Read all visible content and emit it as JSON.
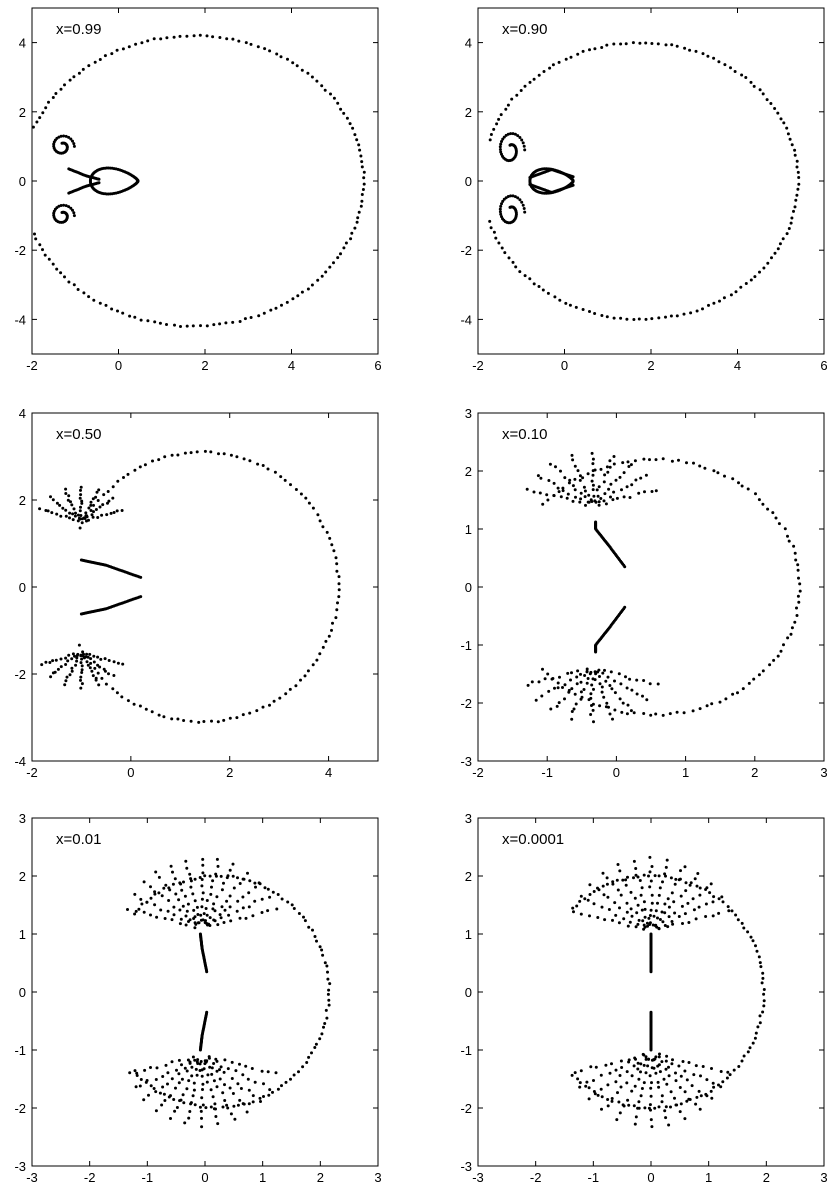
{
  "chart_data": [
    {
      "type": "scatter",
      "label": "x=0.99",
      "xlim": [
        -2,
        6
      ],
      "ylim": [
        -5,
        5
      ],
      "xticks": [
        -2,
        0,
        2,
        4,
        6
      ],
      "yticks": [
        -4,
        -2,
        0,
        2,
        4
      ],
      "curves": [
        {
          "kind": "cardioid",
          "cx": 1.72,
          "rx": 3.95,
          "ry": 4.2,
          "gap": 0.26,
          "n": 150
        },
        {
          "kind": "spiral",
          "cx": -1.3,
          "cy": 1.0,
          "rx": 0.28,
          "ry": 0.35,
          "n": 34
        },
        {
          "kind": "spiral",
          "cx": -1.3,
          "cy": -1.0,
          "rx": 0.28,
          "ry": 0.35,
          "n": 34
        },
        {
          "kind": "loop",
          "cx": -0.1,
          "cy": 0.0,
          "rx": 0.55,
          "ry": 0.34,
          "n": 80
        },
        {
          "kind": "line",
          "points": [
            [
              -1.15,
              0.35
            ],
            [
              -0.75,
              0.15
            ],
            [
              -0.45,
              0.05
            ]
          ],
          "n": 25
        },
        {
          "kind": "line",
          "points": [
            [
              -1.15,
              -0.35
            ],
            [
              -0.75,
              -0.15
            ],
            [
              -0.45,
              -0.05
            ]
          ],
          "n": 25
        }
      ]
    },
    {
      "type": "scatter",
      "label": "x=0.90",
      "xlim": [
        -2,
        6
      ],
      "ylim": [
        -5,
        5
      ],
      "xticks": [
        -2,
        0,
        2,
        4,
        6
      ],
      "yticks": [
        -4,
        -2,
        0,
        2,
        4
      ],
      "curves": [
        {
          "kind": "cardioid",
          "cx": 1.75,
          "rx": 3.65,
          "ry": 4.0,
          "gap": 0.3,
          "n": 140
        },
        {
          "kind": "spiral",
          "cx": -1.25,
          "cy": 0.9,
          "rx": 0.33,
          "ry": 0.55,
          "n": 42
        },
        {
          "kind": "spiral",
          "cx": -1.25,
          "cy": -0.9,
          "rx": 0.33,
          "ry": 0.55,
          "n": 42
        },
        {
          "kind": "loop",
          "cx": -0.3,
          "cy": 0.0,
          "rx": 0.5,
          "ry": 0.32,
          "n": 80
        },
        {
          "kind": "line",
          "points": [
            [
              0.2,
              0.12
            ],
            [
              -0.3,
              0.33
            ],
            [
              -0.8,
              0.1
            ]
          ],
          "n": 30
        },
        {
          "kind": "line",
          "points": [
            [
              0.2,
              -0.12
            ],
            [
              -0.3,
              -0.33
            ],
            [
              -0.8,
              -0.1
            ]
          ],
          "n": 30
        }
      ]
    },
    {
      "type": "scatter",
      "label": "x=0.50",
      "xlim": [
        -2,
        5
      ],
      "ylim": [
        -4,
        4
      ],
      "xticks": [
        -2,
        0,
        2,
        4
      ],
      "yticks": [
        -4,
        -2,
        0,
        2,
        4
      ],
      "curves": [
        {
          "kind": "cardioid",
          "cx": 1.45,
          "rx": 2.75,
          "ry": 3.1,
          "gap": 0.45,
          "n": 110
        },
        {
          "kind": "fan",
          "cx": -1.0,
          "cy": 1.5,
          "spokes": 7,
          "len": 0.8,
          "n": 70
        },
        {
          "kind": "fan",
          "cx": -1.0,
          "cy": -1.5,
          "spokes": 7,
          "len": 0.8,
          "n": 70
        },
        {
          "kind": "line",
          "points": [
            [
              0.2,
              0.22
            ],
            [
              -0.5,
              0.5
            ],
            [
              -1.0,
              0.62
            ]
          ],
          "n": 45
        },
        {
          "kind": "line",
          "points": [
            [
              0.2,
              -0.22
            ],
            [
              -0.5,
              -0.5
            ],
            [
              -1.0,
              -0.62
            ]
          ],
          "n": 45
        }
      ]
    },
    {
      "type": "scatter",
      "label": "x=0.10",
      "xlim": [
        -2,
        3
      ],
      "ylim": [
        -3,
        3
      ],
      "xticks": [
        -2,
        -1,
        0,
        1,
        2,
        3
      ],
      "yticks": [
        -3,
        -2,
        -1,
        0,
        1,
        2,
        3
      ],
      "curves": [
        {
          "kind": "cardioid",
          "cx": 0.55,
          "rx": 2.1,
          "ry": 2.2,
          "gap": 0.7,
          "n": 100
        },
        {
          "kind": "fan",
          "cx": -0.35,
          "cy": 1.4,
          "spokes": 9,
          "len": 0.9,
          "n": 90
        },
        {
          "kind": "fan",
          "cx": -0.35,
          "cy": -1.4,
          "spokes": 9,
          "len": 0.9,
          "n": 90
        },
        {
          "kind": "line",
          "points": [
            [
              0.12,
              0.35
            ],
            [
              -0.1,
              0.7
            ],
            [
              -0.3,
              1.0
            ],
            [
              -0.3,
              1.12
            ]
          ],
          "n": 45
        },
        {
          "kind": "line",
          "points": [
            [
              0.12,
              -0.35
            ],
            [
              -0.1,
              -0.7
            ],
            [
              -0.3,
              -1.0
            ],
            [
              -0.3,
              -1.12
            ]
          ],
          "n": 45
        }
      ]
    },
    {
      "type": "scatter",
      "label": "x=0.01",
      "xlim": [
        -3,
        3
      ],
      "ylim": [
        -3,
        3
      ],
      "xticks": [
        -3,
        -2,
        -1,
        0,
        1,
        2,
        3
      ],
      "yticks": [
        -3,
        -2,
        -1,
        0,
        1,
        2,
        3
      ],
      "curves": [
        {
          "kind": "cardioid",
          "cx": 0.2,
          "rx": 1.95,
          "ry": 2.0,
          "gap": 0.75,
          "n": 100
        },
        {
          "kind": "fan",
          "cx": -0.05,
          "cy": 1.1,
          "spokes": 13,
          "len": 1.2,
          "n": 130
        },
        {
          "kind": "fan",
          "cx": -0.05,
          "cy": -1.1,
          "spokes": 13,
          "len": 1.2,
          "n": 130
        },
        {
          "kind": "line",
          "points": [
            [
              0.03,
              0.35
            ],
            [
              -0.05,
              0.75
            ],
            [
              -0.08,
              1.0
            ]
          ],
          "n": 40
        },
        {
          "kind": "line",
          "points": [
            [
              0.03,
              -0.35
            ],
            [
              -0.05,
              -0.75
            ],
            [
              -0.08,
              -1.0
            ]
          ],
          "n": 40
        }
      ]
    },
    {
      "type": "scatter",
      "label": "x=0.0001",
      "xlim": [
        -3,
        3
      ],
      "ylim": [
        -3,
        3
      ],
      "xticks": [
        -3,
        -2,
        -1,
        0,
        1,
        2,
        3
      ],
      "yticks": [
        -3,
        -2,
        -1,
        0,
        1,
        2,
        3
      ],
      "curves": [
        {
          "kind": "cardioid",
          "cx": 0.0,
          "rx": 1.95,
          "ry": 2.0,
          "gap": 0.8,
          "n": 100
        },
        {
          "kind": "fan",
          "cx": 0.0,
          "cy": 1.05,
          "spokes": 13,
          "len": 1.25,
          "n": 130
        },
        {
          "kind": "fan",
          "cx": 0.0,
          "cy": -1.05,
          "spokes": 13,
          "len": 1.25,
          "n": 130
        },
        {
          "kind": "line",
          "points": [
            [
              0.0,
              0.35
            ],
            [
              0.0,
              1.0
            ]
          ],
          "n": 40
        },
        {
          "kind": "line",
          "points": [
            [
              0.0,
              -0.35
            ],
            [
              0.0,
              -1.0
            ]
          ],
          "n": 40
        }
      ]
    }
  ]
}
